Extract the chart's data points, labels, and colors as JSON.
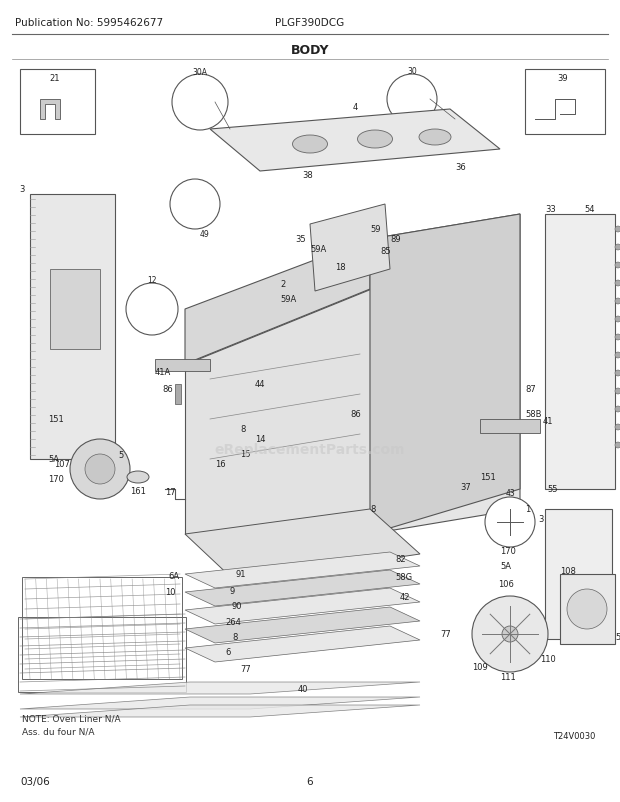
{
  "title": "BODY",
  "pub_no": "Publication No: 5995462677",
  "model": "PLGF390DCG",
  "date": "03/06",
  "page": "6",
  "diagram_id": "T24V0030",
  "note_line1": "NOTE: Oven Liner N/A",
  "note_line2": "Ass. du four N/A",
  "bg_color": "#ffffff",
  "line_color": "#000000",
  "text_color": "#222222",
  "gray_fill": "#d8d8d8",
  "light_gray": "#eeeeee",
  "mid_gray": "#bbbbbb",
  "watermark_text": "eReplacementParts.com",
  "watermark_color": "#c8c8c8",
  "watermark_alpha": 0.6,
  "fig_width": 6.2,
  "fig_height": 8.03,
  "dpi": 100
}
